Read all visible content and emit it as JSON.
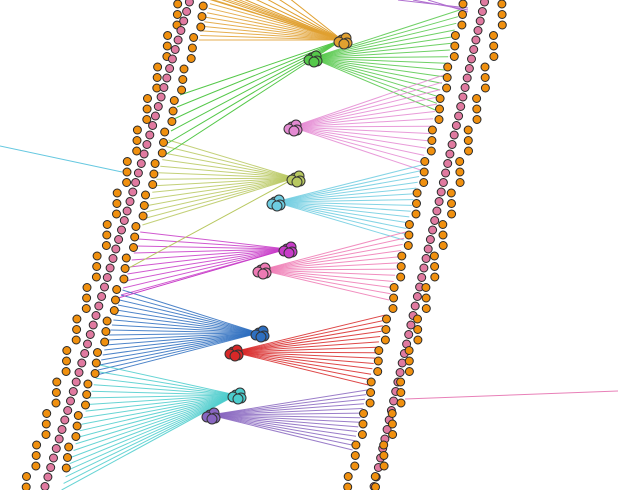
{
  "diagram": {
    "colors": {
      "orange_bead": "#f0900f",
      "pink_bead": "#e07aa0",
      "gold": "#e0a030",
      "purple_top": "#b06fd0",
      "green": "#55c84a",
      "pink": "#e48ad2",
      "olive": "#b8c860",
      "light_blue": "#6ecce0",
      "magenta": "#c83cc8",
      "rose": "#ee7ab4",
      "blue": "#2e6fc0",
      "red": "#d82828",
      "teal": "#4ccccc",
      "violet": "#8866c0",
      "outlier_blue": "#66c8e0",
      "outlier_pink": "#e880b8"
    },
    "clusters": [
      {
        "name": "gold-cluster",
        "color": "gold",
        "side": "left"
      },
      {
        "name": "green-cluster",
        "color": "green",
        "side": "right"
      },
      {
        "name": "pink-cluster",
        "color": "pink",
        "side": "right"
      },
      {
        "name": "olive-cluster",
        "color": "olive",
        "side": "left"
      },
      {
        "name": "light-blue-cluster",
        "color": "light_blue",
        "side": "right"
      },
      {
        "name": "magenta-cluster",
        "color": "magenta",
        "side": "left"
      },
      {
        "name": "rose-cluster",
        "color": "rose",
        "side": "right"
      },
      {
        "name": "blue-cluster",
        "color": "blue",
        "side": "left"
      },
      {
        "name": "red-cluster",
        "color": "red",
        "side": "right"
      },
      {
        "name": "teal-cluster",
        "color": "teal",
        "side": "left"
      },
      {
        "name": "violet-cluster",
        "color": "violet",
        "side": "right"
      }
    ]
  }
}
